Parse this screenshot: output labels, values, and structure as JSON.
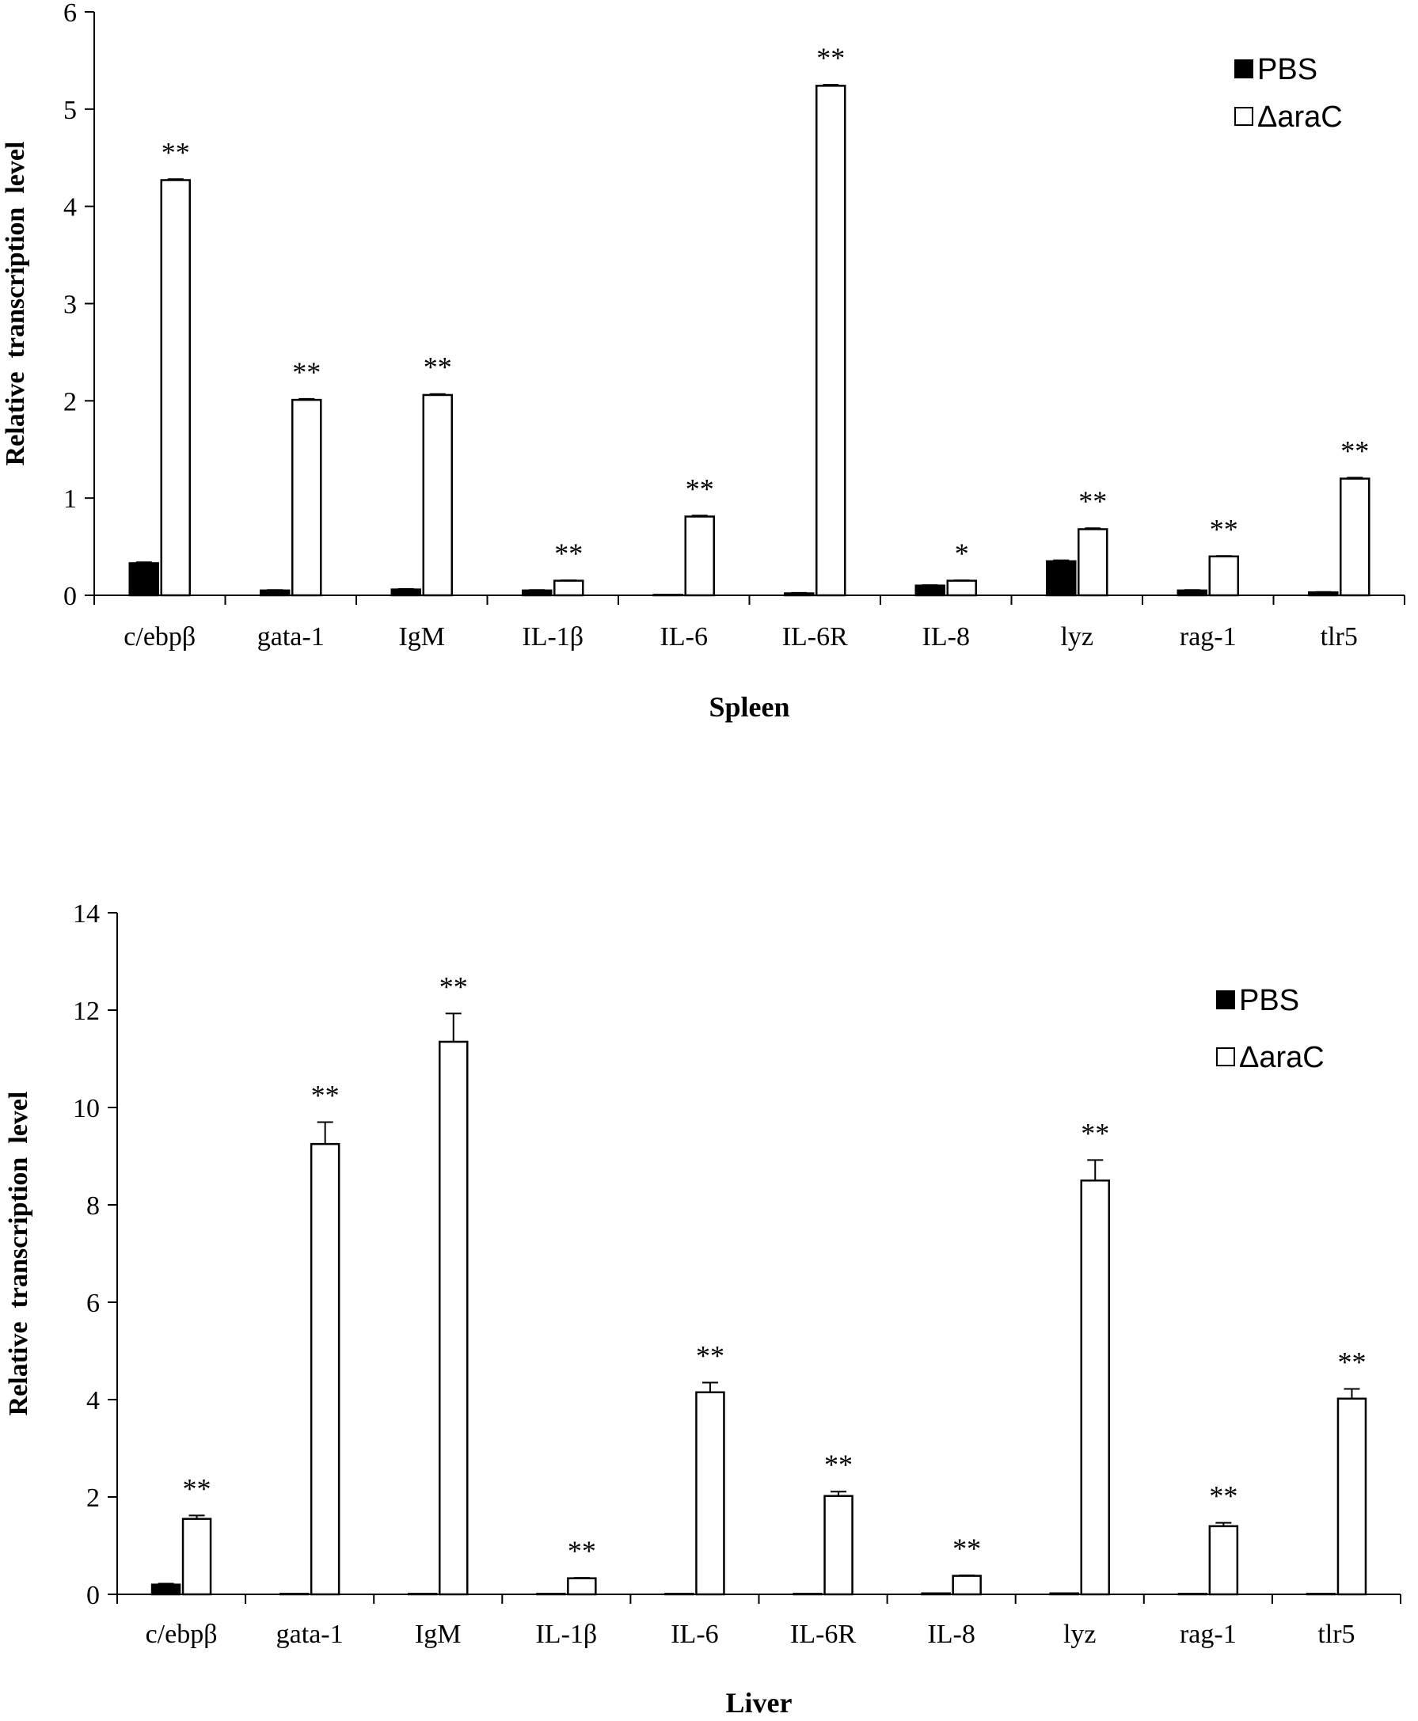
{
  "chart_data": [
    {
      "type": "bar",
      "title": "",
      "xlabel": "Spleen",
      "ylabel": "Relative  transcription  level",
      "ylim": [
        0,
        6
      ],
      "yticks": [
        0,
        1,
        2,
        3,
        4,
        5,
        6
      ],
      "categories": [
        "c/ebpβ",
        "gata-1",
        "IgM",
        "IL-1β",
        "IL-6",
        "IL-6R",
        "IL-8",
        "lyz",
        "rag-1",
        "tlr5"
      ],
      "legend": {
        "position": "top-right"
      },
      "series": [
        {
          "name": "PBS",
          "fill": "#000000",
          "values": [
            0.33,
            0.05,
            0.06,
            0.05,
            0.005,
            0.02,
            0.1,
            0.35,
            0.05,
            0.03
          ],
          "errors": [
            0.01,
            0.005,
            0.005,
            0.005,
            0,
            0.005,
            0.005,
            0.01,
            0.005,
            0.005
          ]
        },
        {
          "name": "ΔaraC",
          "fill": "#ffffff",
          "values": [
            4.27,
            2.01,
            2.06,
            0.15,
            0.81,
            5.24,
            0.15,
            0.68,
            0.4,
            1.2
          ],
          "errors": [
            0.01,
            0.01,
            0.01,
            0.005,
            0.01,
            0.01,
            0.005,
            0.01,
            0.005,
            0.01
          ]
        }
      ],
      "significance": [
        "**",
        "**",
        "**",
        "**",
        "**",
        "**",
        "*",
        "**",
        "**",
        "**"
      ]
    },
    {
      "type": "bar",
      "title": "",
      "xlabel": "Liver",
      "ylabel": "Relative  transcription  level",
      "ylim": [
        0,
        14
      ],
      "yticks": [
        0,
        2,
        4,
        6,
        8,
        10,
        12,
        14
      ],
      "categories": [
        "c/ebpβ",
        "gata-1",
        "IgM",
        "IL-1β",
        "IL-6",
        "IL-6R",
        "IL-8",
        "lyz",
        "rag-1",
        "tlr5"
      ],
      "legend": {
        "position": "top-right"
      },
      "series": [
        {
          "name": "PBS",
          "fill": "#000000",
          "values": [
            0.2,
            0.01,
            0.01,
            0.01,
            0.01,
            0.01,
            0.02,
            0.02,
            0.01,
            0.01
          ],
          "errors": [
            0.02,
            0,
            0,
            0,
            0,
            0,
            0,
            0,
            0,
            0
          ]
        },
        {
          "name": "ΔaraC",
          "fill": "#ffffff",
          "values": [
            1.55,
            9.25,
            11.35,
            0.33,
            4.15,
            2.02,
            0.38,
            8.5,
            1.4,
            4.02
          ],
          "errors": [
            0.07,
            0.45,
            0.58,
            0.01,
            0.2,
            0.09,
            0.01,
            0.42,
            0.07,
            0.2
          ]
        }
      ],
      "significance": [
        "**",
        "**",
        "**",
        "**",
        "**",
        "**",
        "**",
        "**",
        "**",
        "**"
      ]
    }
  ]
}
